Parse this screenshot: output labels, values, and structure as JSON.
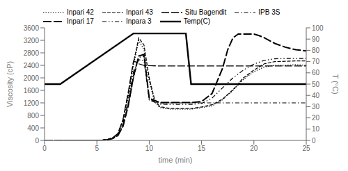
{
  "chart_data": {
    "type": "line",
    "xlabel": "time (min)",
    "ylabel": "Viscosity (cP)",
    "y2label": "T (°C)",
    "xlim": [
      0,
      25
    ],
    "xticks": [
      0,
      5,
      10,
      15,
      20,
      25
    ],
    "ylim": [
      0,
      3600
    ],
    "yticks": [
      0,
      400,
      800,
      1200,
      1600,
      2000,
      2400,
      2800,
      3200,
      3600
    ],
    "y2lim": [
      0,
      100
    ],
    "y2ticks": [
      0,
      10,
      20,
      30,
      40,
      50,
      60,
      70,
      80,
      90,
      100
    ],
    "grid": false,
    "legend": "upper left",
    "series": [
      {
        "name": "Inpari 42",
        "color": "black",
        "line_style": "dotted",
        "x": [
          0,
          1,
          2,
          3,
          4,
          5,
          5.5,
          6,
          6.5,
          7,
          7.5,
          8,
          8.5,
          9,
          9.5,
          10,
          10.5,
          11,
          12,
          13,
          14,
          15,
          16,
          17,
          18,
          19,
          20,
          21,
          22,
          23,
          24,
          25
        ],
        "values": [
          0,
          0,
          0,
          0,
          0,
          0,
          10,
          30,
          80,
          200,
          600,
          1400,
          2400,
          3200,
          2900,
          1900,
          1250,
          1050,
          1000,
          1000,
          1000,
          1050,
          1100,
          1300,
          1600,
          1950,
          2200,
          2350,
          2400,
          2400,
          2420,
          2400
        ]
      },
      {
        "name": "Inpari 43",
        "color": "black",
        "line_style": "dashed",
        "x": [
          0,
          1,
          2,
          3,
          4,
          5,
          5.5,
          6,
          6.5,
          7,
          7.5,
          8,
          8.5,
          9,
          9.5,
          10,
          10.5,
          11,
          12,
          13,
          14,
          15,
          16,
          17,
          18,
          19,
          20,
          21,
          22,
          23,
          24,
          25
        ],
        "values": [
          0,
          0,
          0,
          0,
          0,
          0,
          10,
          30,
          80,
          210,
          650,
          1500,
          2500,
          3280,
          3050,
          2000,
          1320,
          1080,
          1020,
          1020,
          1020,
          1070,
          1140,
          1320,
          1620,
          2000,
          2250,
          2450,
          2520,
          2530,
          2540,
          2540
        ]
      },
      {
        "name": "Situ Bagendit",
        "color": "black",
        "line_style": "long_dashed",
        "x": [
          0,
          1,
          2,
          3,
          4,
          5,
          5.5,
          6,
          6.5,
          7,
          7.5,
          8,
          8.5,
          9,
          9.5,
          10,
          11,
          12,
          13,
          14,
          15,
          16,
          17,
          18,
          19,
          20,
          21,
          22,
          23,
          24,
          25
        ],
        "values": [
          0,
          0,
          0,
          0,
          0,
          0,
          10,
          30,
          85,
          220,
          680,
          1550,
          2550,
          2450,
          2400,
          2390,
          2380,
          2380,
          2380,
          2380,
          2380,
          2380,
          2380,
          2380,
          2380,
          2380,
          2380,
          2380,
          2380,
          2380,
          2380
        ]
      },
      {
        "name": "IPB 3S",
        "color": "black",
        "line_style": "dash_dot",
        "x": [
          0,
          1,
          2,
          3,
          4,
          5,
          5.5,
          6,
          6.5,
          7,
          7.5,
          8,
          8.5,
          9,
          9.5,
          10,
          11,
          12,
          13,
          14,
          15,
          16,
          17,
          18,
          19,
          20,
          21,
          22,
          23,
          24,
          25
        ],
        "values": [
          0,
          0,
          0,
          0,
          0,
          0,
          5,
          20,
          60,
          150,
          450,
          1100,
          2000,
          2650,
          2700,
          1320,
          1200,
          1200,
          1200,
          1200,
          1200,
          1200,
          1200,
          1200,
          1200,
          1200,
          1200,
          1200,
          1200,
          1200,
          1200
        ]
      },
      {
        "name": "Inpari 17",
        "color": "black",
        "line_style": "heavy_dashed",
        "x": [
          0,
          1,
          2,
          3,
          4,
          5,
          5.5,
          6,
          6.5,
          7,
          7.5,
          8,
          8.5,
          9,
          9.5,
          10,
          11,
          12,
          13,
          14,
          15,
          16,
          17,
          17.5,
          18,
          18.5,
          19,
          19.5,
          20,
          20.5,
          21,
          22,
          23,
          24,
          25
        ],
        "values": [
          0,
          0,
          0,
          0,
          0,
          0,
          5,
          20,
          60,
          150,
          460,
          1120,
          2050,
          2700,
          2750,
          1350,
          1210,
          1210,
          1210,
          1210,
          1240,
          1500,
          2300,
          2900,
          3280,
          3400,
          3400,
          3400,
          3400,
          3350,
          3280,
          3100,
          2980,
          2900,
          2860
        ]
      },
      {
        "name": "Inpara 3",
        "color": "black",
        "line_style": "dash_dot_dot",
        "x": [
          0,
          1,
          2,
          3,
          4,
          5,
          5.5,
          6,
          6.5,
          7,
          7.5,
          8,
          8.5,
          9,
          9.5,
          10,
          11,
          12,
          13,
          14,
          15,
          16,
          17,
          18,
          19,
          20,
          21,
          22,
          23,
          24,
          25
        ],
        "values": [
          0,
          0,
          0,
          0,
          0,
          0,
          8,
          25,
          70,
          180,
          550,
          1300,
          2200,
          2580,
          2550,
          1290,
          1160,
          1150,
          1150,
          1150,
          1180,
          1350,
          1680,
          2000,
          2250,
          2440,
          2560,
          2610,
          2620,
          2620,
          2620
        ]
      },
      {
        "name": "Temp(C)",
        "color": "black",
        "line_style": "solid",
        "axis": "y2",
        "x": [
          0,
          0.5,
          1.0,
          1.5,
          8.5,
          13.5,
          14.0,
          21.0,
          21.5,
          25.0
        ],
        "values": [
          50,
          50,
          50,
          50,
          95,
          95,
          50,
          50,
          50,
          50
        ]
      }
    ]
  }
}
